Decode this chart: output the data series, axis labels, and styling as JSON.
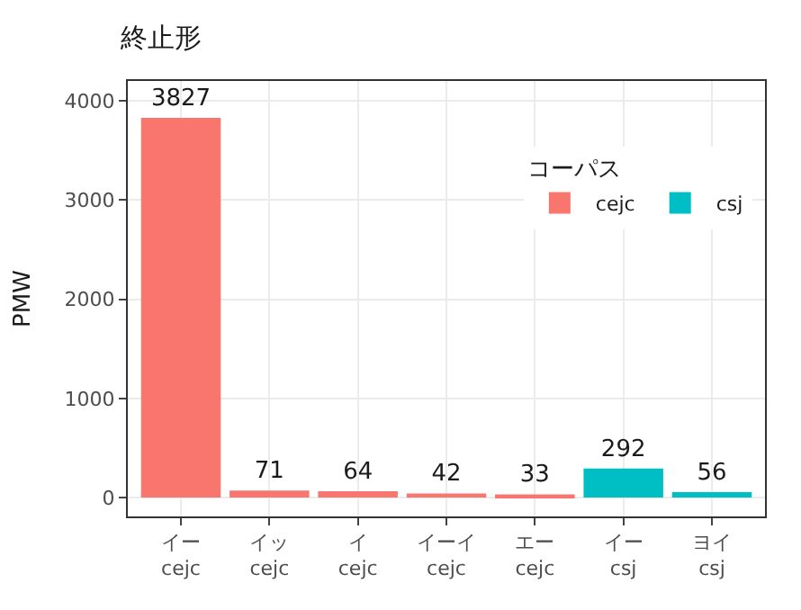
{
  "chart_data": {
    "type": "bar",
    "title": "終止形",
    "ylabel": "PMW",
    "legend_title": "コーパス",
    "categories": [
      "イー\ncejc",
      "イッ\ncejc",
      "イ\ncejc",
      "イーイ\ncejc",
      "エー\ncejc",
      "イー\ncsj",
      "ヨイ\ncsj"
    ],
    "series": [
      {
        "name": "cejc",
        "color": "#f8766d",
        "values": [
          3827,
          71,
          64,
          42,
          33,
          null,
          null
        ]
      },
      {
        "name": "csj",
        "color": "#00bfc4",
        "values": [
          null,
          null,
          null,
          null,
          null,
          292,
          56
        ]
      }
    ],
    "ylim": [
      -190,
      4200
    ],
    "yticks": [
      0,
      1000,
      2000,
      3000,
      4000
    ],
    "grid": true,
    "legend": "top right",
    "data_labels": true
  }
}
